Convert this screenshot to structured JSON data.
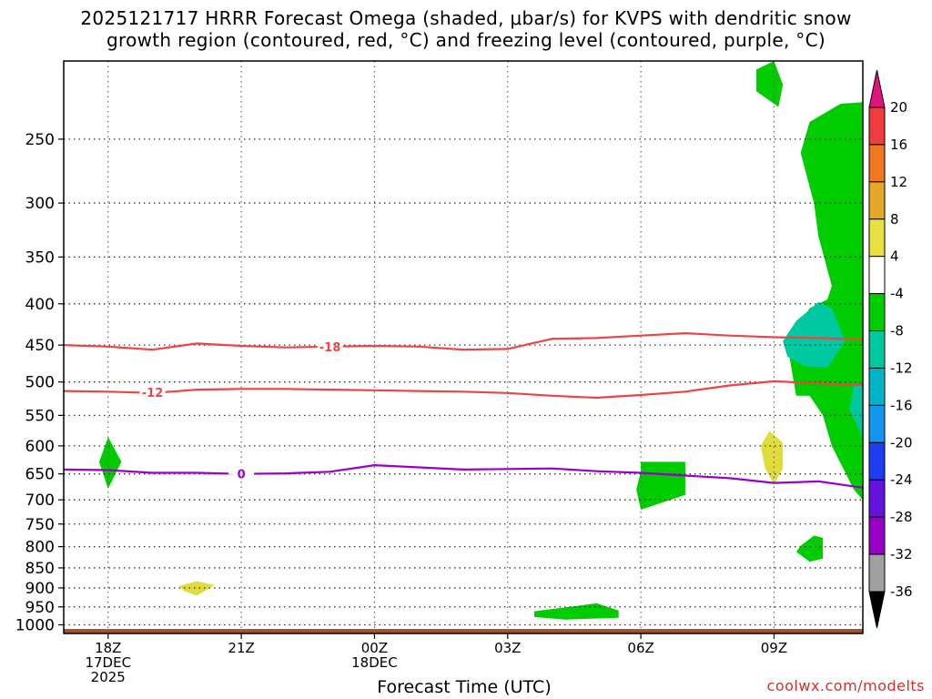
{
  "title_line1": "2025121717 HRRR Forecast Omega (shaded, μbar/s) for KVPS with dendritic snow",
  "title_line2": "growth region (contoured, red, °C) and freezing level (contoured, purple, °C)",
  "x_axis_title": "Forecast Time (UTC)",
  "credit": "coolwx.com/modelts",
  "colors": {
    "green": "#00cc00",
    "teal": "#00c8a0",
    "yellow": "#e0dc3a",
    "red_contour": "#ee4444",
    "purple_contour": "#9900cc",
    "ground": "#a0522d"
  },
  "chart_data": {
    "type": "heatmap",
    "x_ticks": [
      {
        "hour": 0,
        "lines": [
          "18Z",
          "17DEC",
          "2025"
        ]
      },
      {
        "hour": 3,
        "lines": [
          "21Z"
        ]
      },
      {
        "hour": 6,
        "lines": [
          "00Z",
          "18DEC"
        ]
      },
      {
        "hour": 9,
        "lines": [
          "03Z"
        ]
      },
      {
        "hour": 12,
        "lines": [
          "06Z"
        ]
      },
      {
        "hour": 15,
        "lines": [
          "09Z"
        ]
      }
    ],
    "x_range_hours": [
      -1,
      17
    ],
    "y_ticks_mb": [
      250,
      300,
      350,
      400,
      450,
      500,
      550,
      600,
      650,
      700,
      750,
      800,
      850,
      900,
      950,
      1000
    ],
    "y_range_mb": [
      200,
      1025
    ],
    "y_scale": "log-pressure",
    "grid": true,
    "colorbar": {
      "labels": [
        "20",
        "16",
        "12",
        "8",
        "4",
        "-4",
        "-8",
        "-12",
        "-16",
        "-20",
        "-24",
        "-28",
        "-32",
        "-36"
      ],
      "colors": [
        "#f03c3c",
        "#f07820",
        "#e6a828",
        "#e8e040",
        "#ffffff",
        "#00cc00",
        "#00c8a0",
        "#00b4c8",
        "#1496f0",
        "#1e3cf0",
        "#6414dc",
        "#9600c8",
        "#a0a0a0"
      ],
      "top_arrow": "#e0127c",
      "bottom_arrow": "#000000"
    },
    "contours": [
      {
        "label": "-18",
        "color": "#ee4444",
        "label_at": [
          5.0,
          452
        ],
        "points": [
          [
            -1,
            450
          ],
          [
            0,
            452
          ],
          [
            1,
            456
          ],
          [
            2,
            448
          ],
          [
            3,
            451
          ],
          [
            4,
            453
          ],
          [
            5,
            452
          ],
          [
            6,
            451
          ],
          [
            7,
            452
          ],
          [
            8,
            456
          ],
          [
            9,
            455
          ],
          [
            10,
            442
          ],
          [
            11,
            441
          ],
          [
            12,
            438
          ],
          [
            13,
            435
          ],
          [
            14,
            438
          ],
          [
            15,
            440
          ],
          [
            16,
            441
          ],
          [
            17,
            443
          ]
        ]
      },
      {
        "label": "-12",
        "color": "#ee4444",
        "label_at": [
          1.0,
          515
        ],
        "points": [
          [
            -1,
            513
          ],
          [
            0,
            514
          ],
          [
            1,
            516
          ],
          [
            2,
            511
          ],
          [
            3,
            510
          ],
          [
            4,
            510
          ],
          [
            5,
            511
          ],
          [
            6,
            512
          ],
          [
            7,
            513
          ],
          [
            8,
            514
          ],
          [
            9,
            516
          ],
          [
            10,
            520
          ],
          [
            11,
            523
          ],
          [
            12,
            519
          ],
          [
            13,
            514
          ],
          [
            14,
            505
          ],
          [
            15,
            499
          ],
          [
            16,
            502
          ],
          [
            17,
            504
          ]
        ]
      },
      {
        "label": "0",
        "color": "#9900cc",
        "label_at": [
          3.0,
          650
        ],
        "points": [
          [
            -1,
            642
          ],
          [
            0,
            643
          ],
          [
            1,
            648
          ],
          [
            2,
            648
          ],
          [
            3,
            650
          ],
          [
            4,
            649
          ],
          [
            5,
            646
          ],
          [
            6,
            634
          ],
          [
            7,
            638
          ],
          [
            8,
            642
          ],
          [
            9,
            641
          ],
          [
            10,
            640
          ],
          [
            11,
            645
          ],
          [
            12,
            648
          ],
          [
            13,
            653
          ],
          [
            14,
            658
          ],
          [
            15,
            667
          ],
          [
            16,
            664
          ],
          [
            17,
            676
          ]
        ]
      }
    ],
    "regions": [
      {
        "class": "green",
        "points": [
          [
            15.0,
            200
          ],
          [
            14.6,
            205
          ],
          [
            14.6,
            218
          ],
          [
            15.1,
            228
          ],
          [
            15.2,
            214
          ]
        ]
      },
      {
        "class": "green",
        "points": [
          [
            15.5,
            520
          ],
          [
            15.3,
            450
          ],
          [
            15.8,
            405
          ],
          [
            16.2,
            395
          ],
          [
            16.3,
            380
          ],
          [
            16.0,
            330
          ],
          [
            15.9,
            300
          ],
          [
            15.6,
            260
          ],
          [
            15.8,
            238
          ],
          [
            16.5,
            226
          ],
          [
            17.0,
            225
          ],
          [
            17.0,
            700
          ],
          [
            16.8,
            680
          ],
          [
            16.3,
            600
          ],
          [
            16.1,
            550
          ],
          [
            15.8,
            520
          ]
        ]
      },
      {
        "class": "teal",
        "points": [
          [
            15.2,
            445
          ],
          [
            15.5,
            420
          ],
          [
            16.0,
            398
          ],
          [
            16.3,
            405
          ],
          [
            16.6,
            445
          ],
          [
            16.2,
            480
          ],
          [
            15.7,
            478
          ],
          [
            15.3,
            465
          ]
        ]
      },
      {
        "class": "teal",
        "points": [
          [
            16.8,
            505
          ],
          [
            17.0,
            505
          ],
          [
            17.0,
            590
          ],
          [
            16.9,
            570
          ],
          [
            16.7,
            540
          ]
        ]
      },
      {
        "class": "green",
        "points": [
          [
            0.0,
            585
          ],
          [
            0.3,
            628
          ],
          [
            0.0,
            678
          ],
          [
            -0.2,
            628
          ]
        ]
      },
      {
        "class": "green",
        "points": [
          [
            12.0,
            628
          ],
          [
            13.0,
            628
          ],
          [
            13.0,
            690
          ],
          [
            12.0,
            720
          ],
          [
            11.9,
            680
          ],
          [
            12.0,
            645
          ]
        ]
      },
      {
        "class": "green",
        "points": [
          [
            15.6,
            798
          ],
          [
            15.9,
            775
          ],
          [
            16.1,
            780
          ],
          [
            16.1,
            828
          ],
          [
            15.8,
            835
          ],
          [
            15.5,
            812
          ]
        ]
      },
      {
        "class": "green",
        "points": [
          [
            9.6,
            962
          ],
          [
            10.6,
            947
          ],
          [
            11.0,
            940
          ],
          [
            11.5,
            960
          ],
          [
            11.5,
            980
          ],
          [
            10.3,
            985
          ],
          [
            9.6,
            978
          ]
        ]
      },
      {
        "class": "yellow",
        "points": [
          [
            14.9,
            575
          ],
          [
            15.2,
            595
          ],
          [
            15.2,
            640
          ],
          [
            15.0,
            670
          ],
          [
            14.8,
            640
          ],
          [
            14.7,
            600
          ]
        ]
      },
      {
        "class": "yellow",
        "points": [
          [
            1.6,
            895
          ],
          [
            2.0,
            883
          ],
          [
            2.4,
            893
          ],
          [
            2.0,
            920
          ],
          [
            1.7,
            908
          ]
        ]
      }
    ]
  }
}
